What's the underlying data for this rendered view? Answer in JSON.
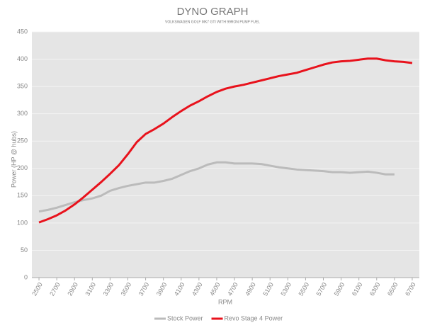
{
  "chart_data": {
    "type": "line",
    "title": "DYNO GRAPH",
    "subtitle": "VOLKSWAGEN GOLF MK7 GTI WITH 99RON PUMP FUEL",
    "x_label": "RPM",
    "y_label": "Power (HP @ hubs)",
    "x": [
      2500,
      2600,
      2700,
      2800,
      2900,
      3000,
      3100,
      3200,
      3300,
      3400,
      3500,
      3600,
      3700,
      3800,
      3900,
      4000,
      4100,
      4200,
      4300,
      4400,
      4500,
      4600,
      4700,
      4800,
      4900,
      5000,
      5100,
      5200,
      5300,
      5400,
      5500,
      5600,
      5700,
      5800,
      5900,
      6000,
      6100,
      6200,
      6300,
      6400,
      6500,
      6600,
      6700
    ],
    "series": [
      {
        "name": "Stock Power",
        "color": "#bbbbbb",
        "values": [
          121,
          124,
          128,
          133,
          138,
          142,
          145,
          150,
          159,
          164,
          168,
          171,
          174,
          174,
          177,
          181,
          188,
          195,
          200,
          207,
          211,
          211,
          209,
          209,
          209,
          208,
          205,
          202,
          200,
          198,
          197,
          196,
          195,
          193,
          193,
          192,
          193,
          194,
          192,
          189,
          189,
          null,
          null
        ]
      },
      {
        "name": "Revo Stage 4 Power",
        "color": "#e8121c",
        "values": [
          101,
          107,
          114,
          123,
          134,
          147,
          161,
          175,
          190,
          206,
          226,
          248,
          263,
          272,
          282,
          294,
          305,
          315,
          323,
          332,
          340,
          346,
          350,
          353,
          357,
          361,
          365,
          369,
          372,
          375,
          380,
          385,
          390,
          394,
          396,
          397,
          399,
          401,
          401,
          398,
          396,
          395,
          393
        ]
      }
    ],
    "xlim": [
      2420,
      6780
    ],
    "xticks": [
      2500,
      2700,
      2900,
      3100,
      3300,
      3500,
      3700,
      3900,
      4100,
      4300,
      4500,
      4700,
      4900,
      5100,
      5300,
      5500,
      5700,
      5900,
      6100,
      6300,
      6500,
      6700
    ],
    "ylim": [
      0,
      450
    ],
    "yticks": [
      0,
      50,
      100,
      150,
      200,
      250,
      300,
      350,
      400,
      450
    ],
    "grid": true,
    "legend": "bottom"
  }
}
